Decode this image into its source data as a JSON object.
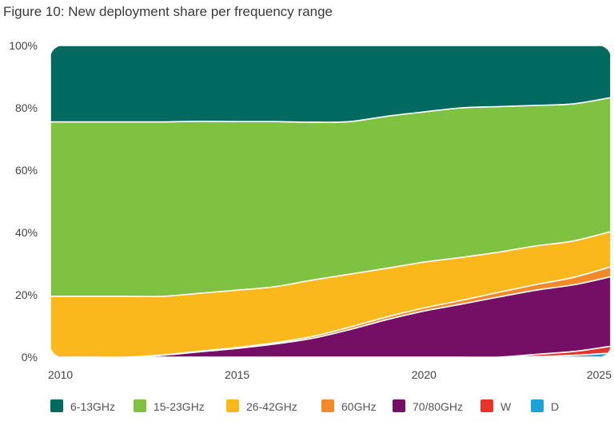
{
  "chart_data": {
    "type": "area",
    "stacked": true,
    "title": "Figure 10: New deployment share per frequency range",
    "xlabel": "",
    "ylabel": "",
    "x": [
      2010,
      2011,
      2012,
      2013,
      2014,
      2015,
      2016,
      2017,
      2018,
      2019,
      2020,
      2021,
      2022,
      2023,
      2024,
      2025
    ],
    "xticks": [
      2010,
      2015,
      2020,
      2025
    ],
    "xlim": [
      2010,
      2025
    ],
    "ylim": [
      0,
      100
    ],
    "yticks": [
      0,
      20,
      40,
      60,
      80,
      100
    ],
    "ytick_labels": [
      "0%",
      "20%",
      "40%",
      "60%",
      "80%",
      "100%"
    ],
    "legend_position": "bottom",
    "series": [
      {
        "name": "D",
        "color": "#1aa3d6",
        "values": [
          0,
          0,
          0,
          0,
          0,
          0,
          0,
          0,
          0,
          0,
          0,
          0,
          0,
          0.2,
          0.6,
          1.3
        ]
      },
      {
        "name": "W",
        "color": "#e8332a",
        "values": [
          0,
          0,
          0,
          0,
          0,
          0,
          0,
          0,
          0,
          0,
          0,
          0,
          0,
          0.7,
          1.2,
          2.2
        ]
      },
      {
        "name": "70/80GHz",
        "color": "#750f65",
        "values": [
          0,
          0,
          0,
          0.6,
          1.7,
          2.8,
          4.2,
          6.0,
          8.8,
          12.0,
          14.8,
          17.0,
          19.3,
          20.6,
          21.4,
          22.3
        ]
      },
      {
        "name": "60GHz",
        "color": "#f28a2a",
        "values": [
          0,
          0,
          0,
          0.1,
          0.2,
          0.3,
          0.4,
          0.6,
          0.8,
          0.9,
          1.0,
          1.2,
          1.5,
          1.8,
          2.4,
          3.2
        ]
      },
      {
        "name": "26-42GHz",
        "color": "#fbb81c",
        "values": [
          19.5,
          19.5,
          19.5,
          18.8,
          18.6,
          18.4,
          18.0,
          18.1,
          17.0,
          15.6,
          14.7,
          13.8,
          12.9,
          12.4,
          11.7,
          11.3
        ]
      },
      {
        "name": "15-23GHz",
        "color": "#7fc241",
        "values": [
          56.0,
          56.0,
          56.0,
          56.0,
          55.2,
          54.1,
          53.0,
          50.7,
          49.0,
          48.8,
          48.2,
          48.0,
          46.7,
          45.1,
          44.0,
          43.0
        ]
      },
      {
        "name": "6-13GHz",
        "color": "#006a60",
        "values": [
          24.5,
          24.5,
          24.5,
          24.5,
          24.3,
          24.4,
          24.4,
          24.6,
          24.4,
          22.7,
          21.3,
          20.0,
          19.6,
          19.2,
          18.7,
          16.7
        ]
      }
    ],
    "legend_order": [
      "6-13GHz",
      "15-23GHz",
      "26-42GHz",
      "60GHz",
      "70/80GHz",
      "W",
      "D"
    ]
  }
}
